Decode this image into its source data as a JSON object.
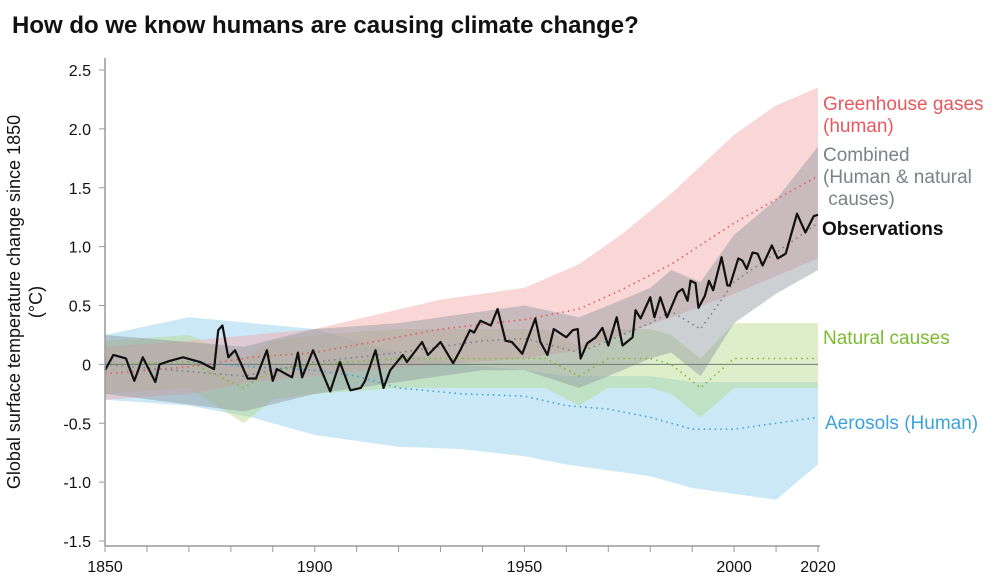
{
  "chart_data": {
    "type": "area",
    "title": "How do we know humans are causing climate change?",
    "ylabel": "Global surface temperature change since 1850 (°C)",
    "xlabel": "",
    "xlim": [
      1850,
      2020
    ],
    "ylim": [
      -1.5,
      2.5
    ],
    "xticks": [
      1850,
      1900,
      1950,
      2000,
      2020
    ],
    "yticks": [
      -1.5,
      -1.0,
      -0.5,
      0,
      0.5,
      1.0,
      1.5,
      2.0,
      2.5
    ],
    "ytick_labels": [
      "-1.5",
      "-1.0",
      "-0.5",
      "0",
      "0.5",
      "1.0",
      "1.5",
      "2.0",
      "2.5"
    ],
    "grid": false,
    "legend": "direct labels right",
    "series": [
      {
        "name": "Aerosols (Human)",
        "color": "#3ba3db",
        "style": "dotted mean with range band",
        "x": [
          1850,
          1870,
          1885,
          1900,
          1910,
          1920,
          1935,
          1950,
          1960,
          1970,
          1980,
          1990,
          2000,
          2010,
          2020
        ],
        "mean": [
          0,
          0.02,
          -0.02,
          -0.05,
          -0.1,
          -0.2,
          -0.25,
          -0.27,
          -0.35,
          -0.38,
          -0.45,
          -0.55,
          -0.55,
          -0.5,
          -0.45
        ],
        "low": [
          -0.3,
          -0.35,
          -0.45,
          -0.6,
          -0.65,
          -0.7,
          -0.72,
          -0.78,
          -0.85,
          -0.9,
          -0.95,
          -1.05,
          -1.1,
          -1.15,
          -0.85
        ],
        "high": [
          0.25,
          0.4,
          0.35,
          0.3,
          0.2,
          0.1,
          0.0,
          -0.05,
          -0.1,
          -0.1,
          -0.1,
          -0.15,
          -0.15,
          -0.15,
          -0.15
        ]
      },
      {
        "name": "Natural causes",
        "color": "#7cbb2f",
        "style": "dotted mean with range band",
        "x": [
          1850,
          1870,
          1883,
          1890,
          1900,
          1920,
          1940,
          1955,
          1963,
          1970,
          1980,
          1985,
          1992,
          2000,
          2010,
          2020
        ],
        "mean": [
          0,
          0.02,
          -0.2,
          -0.05,
          0,
          0.05,
          0.05,
          0.05,
          -0.1,
          0.05,
          0.05,
          0.0,
          -0.2,
          0.05,
          0.05,
          0.05
        ],
        "low": [
          -0.25,
          -0.2,
          -0.5,
          -0.3,
          -0.25,
          -0.2,
          -0.2,
          -0.2,
          -0.35,
          -0.2,
          -0.2,
          -0.25,
          -0.45,
          -0.2,
          -0.2,
          -0.2
        ],
        "high": [
          0.2,
          0.25,
          0.05,
          0.2,
          0.25,
          0.3,
          0.3,
          0.3,
          0.15,
          0.3,
          0.3,
          0.25,
          0.05,
          0.35,
          0.35,
          0.35
        ]
      },
      {
        "name": "Greenhouse gases (human)",
        "color": "#e8585d",
        "style": "dotted mean with range band",
        "x": [
          1850,
          1870,
          1885,
          1900,
          1912,
          1930,
          1950,
          1963,
          1973,
          1985,
          2000,
          2010,
          2020
        ],
        "mean": [
          -0.08,
          -0.02,
          0.06,
          0.1,
          0.18,
          0.3,
          0.38,
          0.47,
          0.63,
          0.85,
          1.2,
          1.4,
          1.6
        ],
        "low": [
          -0.3,
          -0.25,
          -0.15,
          -0.1,
          -0.05,
          0.0,
          0.05,
          0.12,
          0.25,
          0.4,
          0.6,
          0.75,
          0.9
        ],
        "high": [
          0.15,
          0.2,
          0.25,
          0.3,
          0.4,
          0.55,
          0.65,
          0.85,
          1.1,
          1.45,
          1.95,
          2.2,
          2.35
        ]
      },
      {
        "name": "Combined (Human & natural causes)",
        "color": "#7b8289",
        "style": "dotted mean with range band",
        "x": [
          1850,
          1883,
          1900,
          1920,
          1940,
          1950,
          1963,
          1970,
          1980,
          1985,
          1992,
          2000,
          2010,
          2020
        ],
        "mean": [
          0,
          -0.1,
          0.02,
          0.1,
          0.2,
          0.22,
          0.1,
          0.2,
          0.35,
          0.45,
          0.3,
          0.7,
          0.95,
          1.2
        ],
        "low": [
          -0.25,
          -0.4,
          -0.25,
          -0.15,
          -0.05,
          -0.05,
          -0.2,
          -0.1,
          0.05,
          0.1,
          -0.1,
          0.35,
          0.6,
          0.8
        ],
        "high": [
          0.25,
          0.15,
          0.3,
          0.35,
          0.45,
          0.5,
          0.4,
          0.5,
          0.65,
          0.8,
          0.7,
          1.1,
          1.4,
          1.85
        ]
      },
      {
        "name": "Observations",
        "color": "#111111",
        "style": "solid line",
        "x": [
          1850,
          1852,
          1855,
          1857,
          1859,
          1862,
          1863,
          1865.5,
          1868.6,
          1872.7,
          1876,
          1877,
          1878,
          1879.4,
          1881,
          1884,
          1886,
          1888.6,
          1890,
          1891,
          1894.6,
          1896,
          1897,
          1899.6,
          1903.7,
          1906,
          1908.5,
          1911,
          1912,
          1914.5,
          1916.4,
          1918,
          1921,
          1922,
          1925.6,
          1927,
          1930,
          1933,
          1934.7,
          1937,
          1938,
          1939.5,
          1942,
          1943.6,
          1945.5,
          1947,
          1949.5,
          1952.6,
          1953.8,
          1955.5,
          1957,
          1960,
          1961.5,
          1962.7,
          1963.4,
          1965,
          1967,
          1968.6,
          1970,
          1972,
          1973.4,
          1975.8,
          1976.5,
          1977.7,
          1980,
          1981,
          1982.4,
          1984,
          1986.5,
          1987.7,
          1988.9,
          1989.6,
          1990.8,
          1991.5,
          1993,
          1994,
          1995,
          1997,
          1998.4,
          1999,
          2001,
          2002,
          2003,
          2004.4,
          2005.6,
          2006.8,
          2009,
          2010.4,
          2012.3,
          2015,
          2017,
          2019,
          2020
        ],
        "y": [
          -0.05,
          0.08,
          0.05,
          -0.14,
          0.06,
          -0.15,
          0,
          0.03,
          0.06,
          0.02,
          -0.04,
          0.29,
          0.33,
          0.06,
          0.12,
          -0.12,
          -0.12,
          0.12,
          -0.14,
          -0.04,
          -0.11,
          0.1,
          -0.11,
          0.12,
          -0.23,
          0.02,
          -0.22,
          -0.2,
          -0.14,
          0.12,
          -0.2,
          -0.05,
          0.08,
          0.02,
          0.19,
          0.08,
          0.19,
          0.01,
          0.12,
          0.29,
          0.27,
          0.37,
          0.33,
          0.47,
          0.2,
          0.19,
          0.09,
          0.39,
          0.19,
          0.08,
          0.3,
          0.23,
          0.29,
          0.3,
          0.05,
          0.18,
          0.23,
          0.31,
          0.16,
          0.4,
          0.16,
          0.23,
          0.46,
          0.39,
          0.57,
          0.4,
          0.57,
          0.4,
          0.61,
          0.64,
          0.54,
          0.71,
          0.69,
          0.48,
          0.58,
          0.71,
          0.63,
          0.91,
          0.67,
          0.67,
          0.9,
          0.88,
          0.81,
          0.95,
          0.94,
          0.84,
          1.01,
          0.9,
          0.94,
          1.28,
          1.12,
          1.26,
          1.27
        ]
      }
    ]
  },
  "labels": {
    "ghg": [
      "Greenhouse gases",
      "(human)"
    ],
    "combined": [
      "Combined",
      "(Human & natural",
      " causes)"
    ],
    "obs": "Observations",
    "natural": "Natural causes",
    "aerosols": "Aerosols (Human)"
  }
}
